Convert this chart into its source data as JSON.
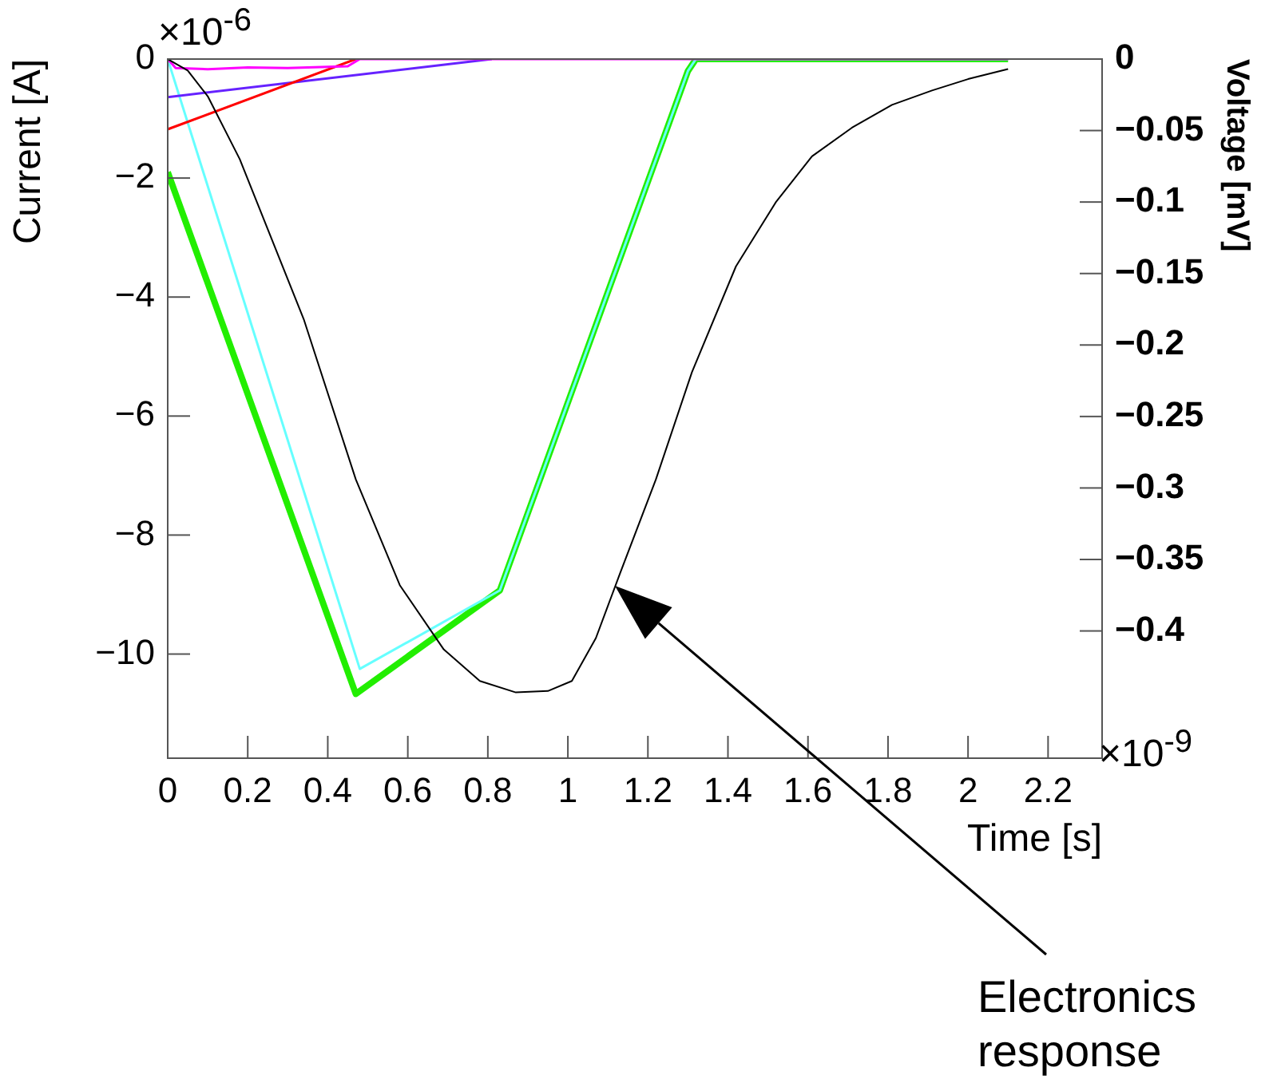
{
  "chart_data": {
    "type": "line",
    "xlabel": "Time [s]",
    "ylabel": "Current [A]",
    "y2label": "Voltage [mV]",
    "xlim": [
      0,
      2.335
    ],
    "xticks": [
      0,
      0.2,
      0.4,
      0.6,
      0.8,
      1,
      1.2,
      1.4,
      1.6,
      1.8,
      2,
      2.2
    ],
    "ylim": [
      -11.75,
      0
    ],
    "yticks": [
      0,
      -2,
      -4,
      -6,
      -8,
      -10
    ],
    "y2lim": [
      -0.489,
      0
    ],
    "y2ticks": [
      0,
      -0.05,
      -0.1,
      -0.15,
      -0.2,
      -0.25,
      -0.3,
      -0.35,
      -0.4
    ],
    "grid": false,
    "legend": false,
    "marker": "none",
    "line_style": "solid",
    "annotations": [
      "×10$^{-6}$",
      "×10$^{-9}$",
      "Electronics response"
    ],
    "series": [
      {
        "color": "#000000",
        "axis": "y2",
        "x": [
          0,
          0.05,
          0.1,
          0.18,
          0.34,
          0.47,
          0.58,
          0.69,
          0.78,
          0.87,
          0.95,
          1.01,
          1.07,
          1.13,
          1.22,
          1.31,
          1.42,
          1.52,
          1.61,
          1.71,
          1.81,
          1.91,
          2.0,
          2.1
        ],
        "values": [
          0,
          -0.008,
          -0.026,
          -0.07,
          -0.182,
          -0.294,
          -0.368,
          -0.413,
          -0.435,
          -0.443,
          -0.442,
          -0.435,
          -0.405,
          -0.36,
          -0.294,
          -0.219,
          -0.145,
          -0.1,
          -0.068,
          -0.048,
          -0.032,
          -0.022,
          -0.014,
          -0.007
        ]
      },
      {
        "color": "#ff00ff",
        "x": [
          0,
          0.02,
          0.1,
          0.2,
          0.3,
          0.45,
          0.48,
          2.1
        ],
        "values": [
          0,
          -0.15,
          -0.17,
          -0.14,
          -0.15,
          -0.12,
          0,
          0
        ]
      },
      {
        "color": "#ff0000",
        "x": [
          0,
          0.47
        ],
        "values": [
          -1.18,
          0
        ]
      },
      {
        "color": "#6622ff",
        "x": [
          0,
          0.81
        ],
        "values": [
          -0.64,
          0
        ]
      },
      {
        "color": "#66ffff",
        "x": [
          0,
          0.48,
          0.83,
          1.3,
          1.32,
          2.1
        ],
        "values": [
          0,
          -10.25,
          -8.93,
          -0.2,
          0,
          0
        ]
      },
      {
        "color": "#22ee00",
        "x": [
          0,
          0.47,
          0.83,
          1.3,
          1.32,
          2.1
        ],
        "values": [
          -1.9,
          -10.67,
          -8.93,
          -0.2,
          0,
          0
        ]
      }
    ]
  }
}
